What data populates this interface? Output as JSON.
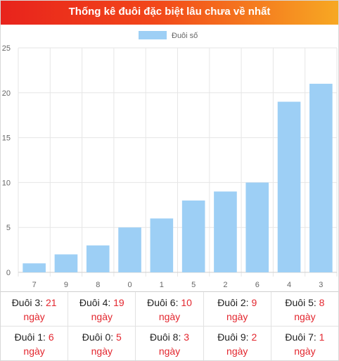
{
  "header": {
    "title": "Thống kê đuôi đặc biệt lâu chưa về nhất"
  },
  "chart_data": {
    "type": "bar",
    "categories": [
      "7",
      "9",
      "8",
      "0",
      "1",
      "5",
      "2",
      "6",
      "4",
      "3"
    ],
    "series": [
      {
        "name": "Đuôi số",
        "values": [
          1,
          2,
          3,
          5,
          6,
          8,
          9,
          10,
          19,
          21
        ],
        "color": "#9dcff5"
      }
    ],
    "ylim": [
      0,
      25
    ],
    "yticks": [
      0,
      5,
      10,
      15,
      20,
      25
    ],
    "grid": true,
    "legend": "top"
  },
  "stats": {
    "unit": "ngày",
    "rows": [
      [
        {
          "label": "Đuôi 3:",
          "value": "21"
        },
        {
          "label": "Đuôi 4:",
          "value": "19"
        },
        {
          "label": "Đuôi 6:",
          "value": "10"
        },
        {
          "label": "Đuôi 2:",
          "value": "9"
        },
        {
          "label": "Đuôi 5:",
          "value": "8"
        }
      ],
      [
        {
          "label": "Đuôi 1:",
          "value": "6"
        },
        {
          "label": "Đuôi 0:",
          "value": "5"
        },
        {
          "label": "Đuôi 8:",
          "value": "3"
        },
        {
          "label": "Đuôi 9:",
          "value": "2"
        },
        {
          "label": "Đuôi 7:",
          "value": "1"
        }
      ]
    ]
  }
}
